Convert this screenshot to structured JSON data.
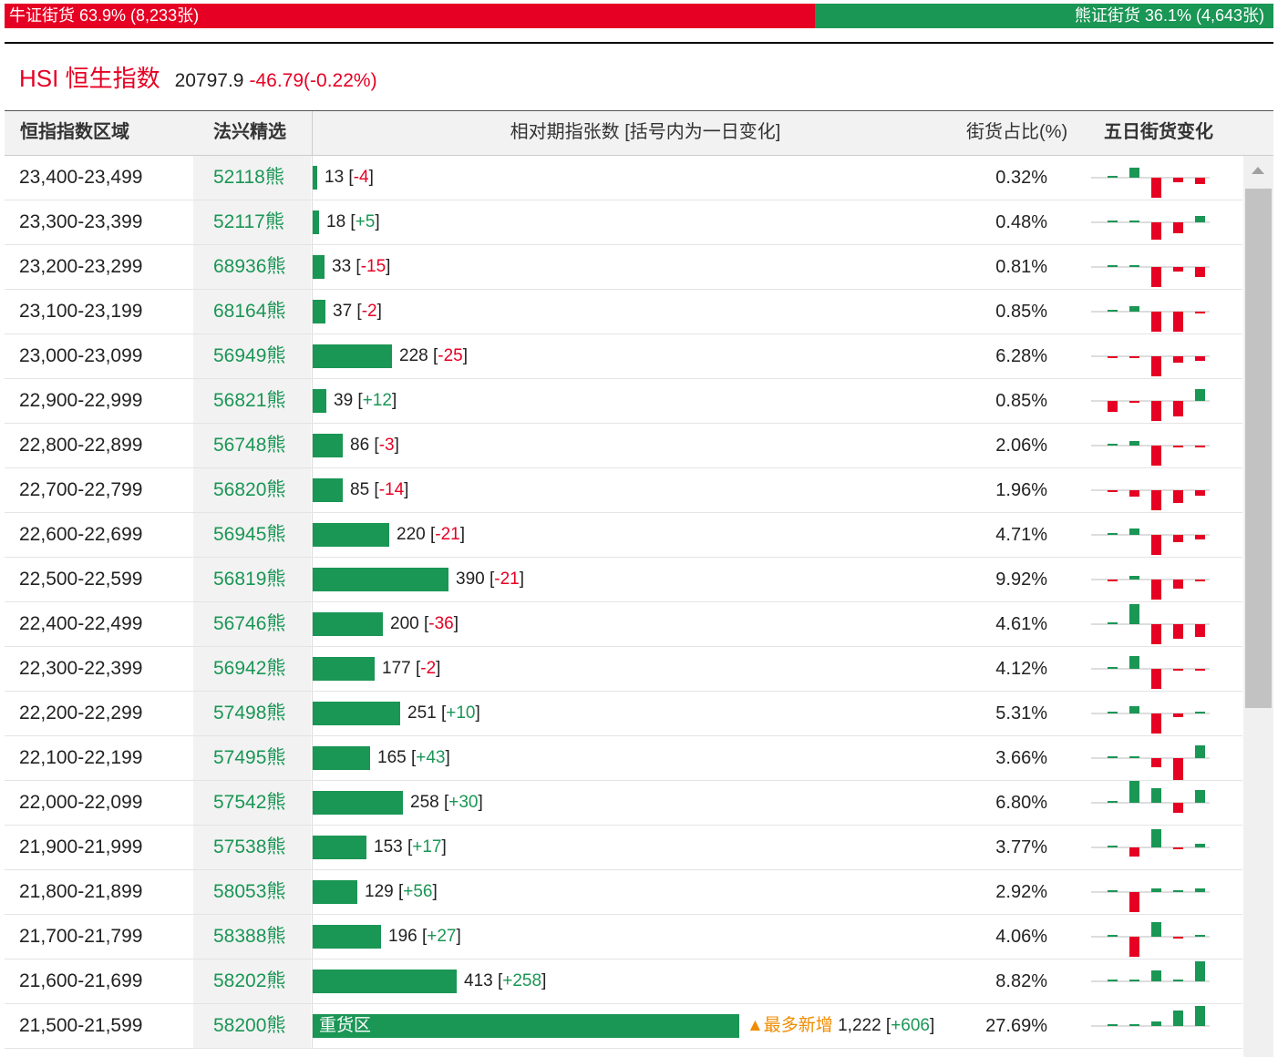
{
  "ratio": {
    "bull_label": "牛证街货 63.9% (8,233张)",
    "bear_label": "熊证街货 36.1% (4,643张)",
    "bull_fraction": 0.639,
    "colors": {
      "bull": "#e60023",
      "bear": "#1a9655"
    }
  },
  "index": {
    "name": "HSI 恒生指数",
    "value": "20797.9",
    "change": "-46.79(-0.22%)"
  },
  "table": {
    "headers": {
      "range": "恒指指数区域",
      "warrant": "法兴精选",
      "count": "相对期指张数 [括号内为一日变化]",
      "pct": "街货占比(%)",
      "trend": "五日街货变化"
    },
    "max_count": 1222,
    "rows": [
      {
        "range": "23,400-23,499",
        "warrant": "52118熊",
        "count": "13",
        "change": "-4",
        "countValue": 13,
        "pct": "0.32%",
        "trend": [
          0,
          0,
          0.45,
          -0.9,
          -0.2,
          -0.3
        ]
      },
      {
        "range": "23,300-23,399",
        "warrant": "52117熊",
        "count": "18",
        "change": "+5",
        "countValue": 18,
        "pct": "0.48%",
        "trend": [
          0,
          0,
          0,
          -0.8,
          -0.5,
          0.3
        ]
      },
      {
        "range": "23,200-23,299",
        "warrant": "68936熊",
        "count": "33",
        "change": "-15",
        "countValue": 33,
        "pct": "0.81%",
        "trend": [
          0,
          0,
          0.1,
          -0.9,
          -0.2,
          -0.45
        ]
      },
      {
        "range": "23,100-23,199",
        "warrant": "68164熊",
        "count": "37",
        "change": "-2",
        "countValue": 37,
        "pct": "0.85%",
        "trend": [
          0,
          0,
          0.25,
          -0.9,
          -0.9,
          -0.05
        ]
      },
      {
        "range": "23,000-23,099",
        "warrant": "56949熊",
        "count": "228",
        "change": "-25",
        "countValue": 228,
        "pct": "6.28%",
        "trend": [
          0,
          -0.05,
          -0.05,
          -0.9,
          -0.3,
          -0.2
        ]
      },
      {
        "range": "22,900-22,999",
        "warrant": "56821熊",
        "count": "39",
        "change": "+12",
        "countValue": 39,
        "pct": "0.85%",
        "trend": [
          0,
          -0.5,
          -0.1,
          -0.9,
          -0.7,
          0.55
        ]
      },
      {
        "range": "22,800-22,899",
        "warrant": "56748熊",
        "count": "86",
        "change": "-3",
        "countValue": 86,
        "pct": "2.06%",
        "trend": [
          0,
          0,
          0.2,
          -0.9,
          -0.05,
          -0.05
        ]
      },
      {
        "range": "22,700-22,799",
        "warrant": "56820熊",
        "count": "85",
        "change": "-14",
        "countValue": 85,
        "pct": "1.96%",
        "trend": [
          0,
          -0.1,
          -0.3,
          -0.9,
          -0.6,
          -0.25
        ]
      },
      {
        "range": "22,600-22,699",
        "warrant": "56945熊",
        "count": "220",
        "change": "-21",
        "countValue": 220,
        "pct": "4.71%",
        "trend": [
          0,
          0,
          0.3,
          -0.9,
          -0.35,
          -0.2
        ]
      },
      {
        "range": "22,500-22,599",
        "warrant": "56819熊",
        "count": "390",
        "change": "-21",
        "countValue": 390,
        "pct": "9.92%",
        "trend": [
          0,
          -0.1,
          0.15,
          -0.9,
          -0.4,
          -0.05
        ]
      },
      {
        "range": "22,400-22,499",
        "warrant": "56746熊",
        "count": "200",
        "change": "-36",
        "countValue": 200,
        "pct": "4.61%",
        "trend": [
          0,
          0,
          0.9,
          -0.9,
          -0.65,
          -0.6
        ]
      },
      {
        "range": "22,300-22,399",
        "warrant": "56942熊",
        "count": "177",
        "change": "-2",
        "countValue": 177,
        "pct": "4.12%",
        "trend": [
          0,
          0,
          0.6,
          -0.9,
          -0.05,
          -0.05
        ]
      },
      {
        "range": "22,200-22,299",
        "warrant": "57498熊",
        "count": "251",
        "change": "+10",
        "countValue": 251,
        "pct": "5.31%",
        "trend": [
          0,
          0,
          0.35,
          -0.9,
          -0.15,
          0.05
        ]
      },
      {
        "range": "22,100-22,199",
        "warrant": "57495熊",
        "count": "165",
        "change": "+43",
        "countValue": 165,
        "pct": "3.66%",
        "trend": [
          0,
          0,
          0,
          -0.4,
          -1.0,
          0.6
        ]
      },
      {
        "range": "22,000-22,099",
        "warrant": "57542熊",
        "count": "258",
        "change": "+30",
        "countValue": 258,
        "pct": "6.80%",
        "trend": [
          0,
          0,
          1.0,
          0.65,
          -0.45,
          0.6
        ]
      },
      {
        "range": "21,900-21,999",
        "warrant": "57538熊",
        "count": "153",
        "change": "+17",
        "countValue": 153,
        "pct": "3.77%",
        "trend": [
          0,
          0,
          -0.4,
          0.85,
          -0.05,
          0.15
        ]
      },
      {
        "range": "21,800-21,899",
        "warrant": "58053熊",
        "count": "129",
        "change": "+56",
        "countValue": 129,
        "pct": "2.92%",
        "trend": [
          0,
          0,
          -0.9,
          0.15,
          0.05,
          0.15
        ]
      },
      {
        "range": "21,700-21,799",
        "warrant": "58388熊",
        "count": "196",
        "change": "+27",
        "countValue": 196,
        "pct": "4.06%",
        "trend": [
          0,
          0,
          -0.9,
          0.65,
          -0.05,
          0.1
        ]
      },
      {
        "range": "21,600-21,699",
        "warrant": "58202熊",
        "count": "413",
        "change": "+258",
        "countValue": 413,
        "pct": "8.82%",
        "trend": [
          0,
          0,
          0,
          0.5,
          0.05,
          0.9
        ]
      },
      {
        "range": "21,500-21,599",
        "warrant": "58200熊",
        "count": "1,222",
        "change": "+606",
        "countValue": 1222,
        "pct": "27.69%",
        "trend": [
          0,
          0,
          0,
          0.2,
          0.7,
          0.9
        ],
        "bar_text": "重货区",
        "tag": "▲最多新增"
      }
    ]
  }
}
